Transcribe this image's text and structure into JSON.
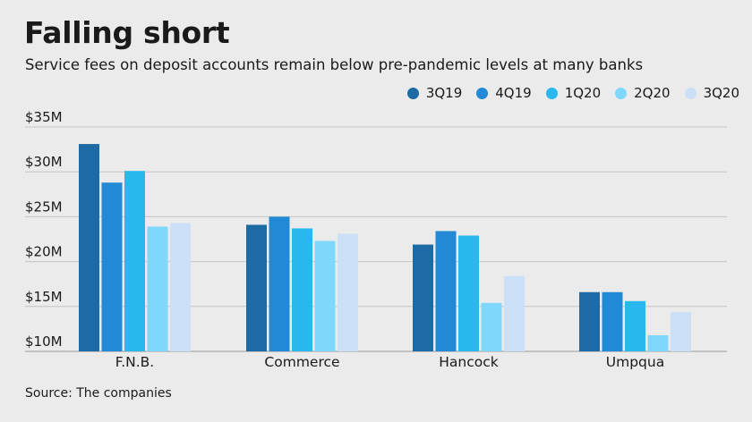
{
  "title": "Falling short",
  "subtitle": "Service fees on deposit accounts remain below pre-pandemic levels at many banks",
  "source": "Source: The companies",
  "chart_data": {
    "type": "bar",
    "categories": [
      "F.N.B.",
      "Commerce",
      "Hancock",
      "Umpqua"
    ],
    "series": [
      {
        "name": "3Q19",
        "color": "#1d6aa5",
        "values": [
          33.1,
          24.1,
          21.9,
          16.6
        ]
      },
      {
        "name": "4Q19",
        "color": "#2189d6",
        "values": [
          28.8,
          25.0,
          23.4,
          16.6
        ]
      },
      {
        "name": "1Q20",
        "color": "#2ab7ee",
        "values": [
          30.1,
          23.7,
          22.9,
          15.6
        ]
      },
      {
        "name": "2Q20",
        "color": "#7fd8fb",
        "values": [
          23.9,
          22.3,
          15.4,
          11.8
        ]
      },
      {
        "name": "3Q20",
        "color": "#cbe0f7",
        "values": [
          24.3,
          23.1,
          18.4,
          14.4
        ]
      }
    ],
    "ylim": [
      10,
      35
    ],
    "yticks": [
      10,
      15,
      20,
      25,
      30,
      35
    ],
    "ytick_labels": [
      "$10M",
      "$15M",
      "$20M",
      "$25M",
      "$30M",
      "$35M"
    ],
    "grid": true,
    "legend_position": "top-right"
  }
}
